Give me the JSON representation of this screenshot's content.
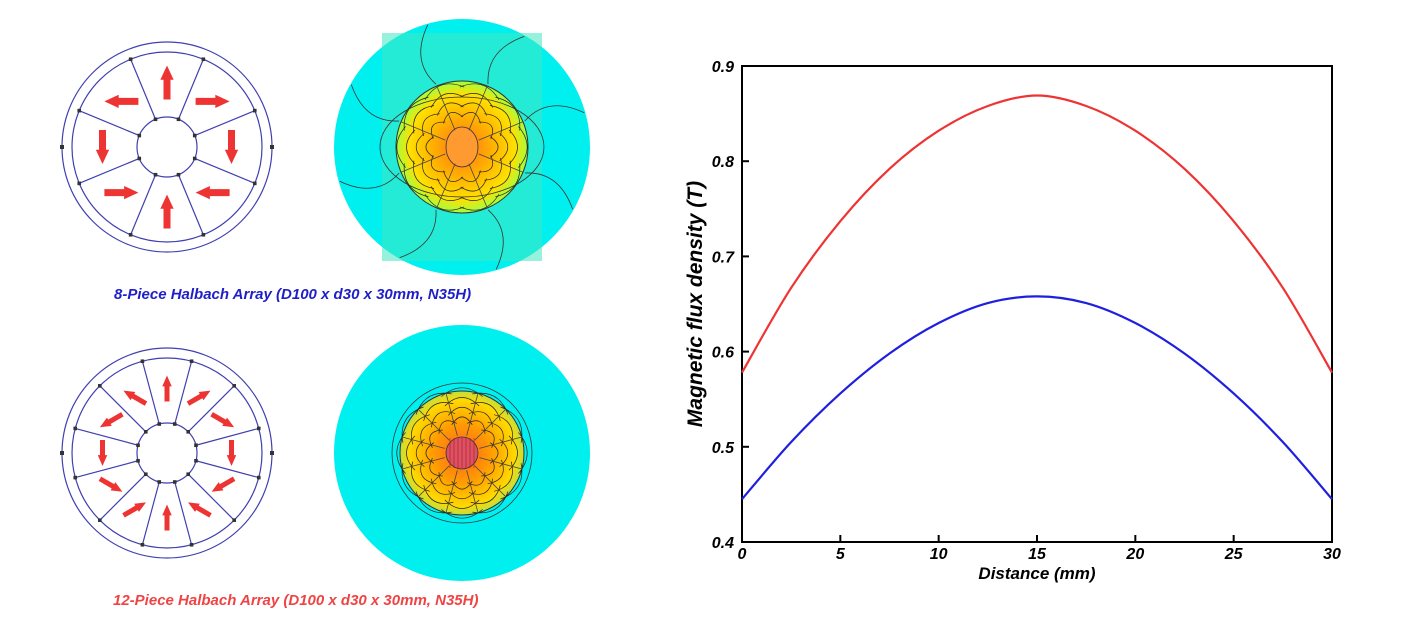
{
  "figures": {
    "eight_piece": {
      "caption": "8-Piece Halbach Array (D100 x d30 x 30mm, N35H)",
      "caption_color": "#1f1fc8",
      "arrow_color": "#ee3333",
      "outline_color": "#4040b0"
    },
    "twelve_piece": {
      "caption": "12-Piece Halbach Array (D100 x d30 x 30mm, N35H)",
      "caption_color": "#ee4444",
      "arrow_color": "#ee3333",
      "outline_color": "#4040b0"
    },
    "field_background_color": "#00f0f0"
  },
  "chart_data": {
    "type": "line",
    "xlabel": "Distance (mm)",
    "ylabel": "Magnetic flux density (T)",
    "xlim": [
      0,
      30
    ],
    "ylim": [
      0.4,
      0.9
    ],
    "xticks": [
      0,
      5,
      10,
      15,
      20,
      25,
      30
    ],
    "yticks": [
      0.4,
      0.5,
      0.6,
      0.7,
      0.8,
      0.9
    ],
    "xtick_labels": [
      "0",
      "5",
      "10",
      "15",
      "20",
      "25",
      "30"
    ],
    "ytick_labels": [
      "0.4",
      "0.5",
      "0.6",
      "0.7",
      "0.8",
      "0.9"
    ],
    "grid": false,
    "legend": "none",
    "series": [
      {
        "color": "#ee3333",
        "x": [
          0,
          2.5,
          5,
          7.5,
          10,
          12.5,
          15,
          17.5,
          20,
          22.5,
          25,
          27.5,
          30
        ],
        "y": [
          0.578,
          0.667,
          0.737,
          0.792,
          0.832,
          0.858,
          0.869,
          0.858,
          0.832,
          0.792,
          0.737,
          0.667,
          0.578
        ]
      },
      {
        "color": "#1f1fe0",
        "x": [
          0,
          2.5,
          5,
          7.5,
          10,
          12.5,
          15,
          17.5,
          20,
          22.5,
          25,
          27.5,
          30
        ],
        "y": [
          0.445,
          0.505,
          0.556,
          0.598,
          0.63,
          0.651,
          0.658,
          0.651,
          0.63,
          0.598,
          0.556,
          0.505,
          0.445
        ]
      }
    ]
  }
}
